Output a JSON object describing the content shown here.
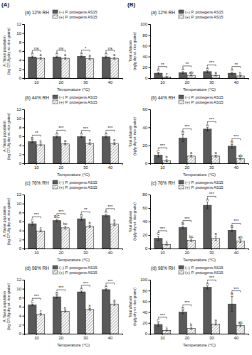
{
  "panel_headings": [
    "(A)",
    "(B)"
  ],
  "chart_data": [
    {
      "type": "bar",
      "title": "(a) 12% RH",
      "xlabel": "Temperature (°C)",
      "ylabel": [
        "A. flavus population",
        "(log CFU/g dry wt. rice grains)"
      ],
      "categories": [
        "10",
        "20",
        "30",
        "40"
      ],
      "ylim": [
        0,
        12
      ],
      "yticks": [
        0,
        2,
        4,
        6,
        8,
        10,
        12
      ],
      "legend": "upper left",
      "series": [
        {
          "name": "(−) P. protegens AS15",
          "color": "#595959",
          "values": [
            4.7,
            4.7,
            4.8,
            4.7
          ],
          "errors": [
            0.2,
            0.2,
            0.15,
            0.2
          ],
          "letters": [
            "A",
            "A",
            "A",
            "A"
          ]
        },
        {
          "name": "(+) P. protegens AS15",
          "color": "#ffffff",
          "values": [
            4.4,
            4.4,
            4.3,
            4.4
          ],
          "errors": [
            0.25,
            0.2,
            0.2,
            0.2
          ],
          "letters": [
            "a",
            "a",
            "a",
            "a"
          ]
        }
      ],
      "significance": [
        "ns",
        "ns",
        "*",
        "ns"
      ]
    },
    {
      "type": "bar",
      "title": "(b) 44% RH",
      "xlabel": "Temperature (°C)",
      "ylabel": [
        "A. flavus population",
        "(log CFU/g dry wt. rice grains)"
      ],
      "categories": [
        "10",
        "20",
        "30",
        "40"
      ],
      "ylim": [
        0,
        12
      ],
      "yticks": [
        0,
        2,
        4,
        6,
        8,
        10,
        12
      ],
      "legend": "upper left",
      "series": [
        {
          "name": "(−) P. protegens AS15",
          "color": "#595959",
          "values": [
            4.8,
            5.9,
            5.9,
            5.9
          ],
          "errors": [
            0.2,
            0.2,
            0.15,
            0.2
          ],
          "letters": [
            "B",
            "A",
            "A",
            "A"
          ]
        },
        {
          "name": "(+) P. protegens AS15",
          "color": "#ffffff",
          "values": [
            4.1,
            4.3,
            4.4,
            4.4
          ],
          "errors": [
            0.2,
            0.2,
            0.2,
            0.2
          ],
          "letters": [
            "b",
            "a",
            "a",
            "a"
          ]
        }
      ],
      "significance": [
        "**",
        "***",
        "***",
        "***"
      ]
    },
    {
      "type": "bar",
      "title": "(c) 76% RH",
      "xlabel": "Temperature (°C)",
      "ylabel": [
        "A. flavus population",
        "(log CFU/g dry wt. rice grains)"
      ],
      "categories": [
        "10",
        "20",
        "30",
        "40"
      ],
      "ylim": [
        0,
        12
      ],
      "yticks": [
        0,
        2,
        4,
        6,
        8,
        10,
        12
      ],
      "legend": "upper left",
      "series": [
        {
          "name": "(−) P. protegens AS15",
          "color": "#595959",
          "values": [
            5.5,
            6.2,
            6.6,
            7.3
          ],
          "errors": [
            0.3,
            0.3,
            0.3,
            0.3
          ],
          "letters": [
            "C",
            "BC",
            "B",
            "A"
          ]
        },
        {
          "name": "(+) P. protegens AS15",
          "color": "#ffffff",
          "values": [
            3.9,
            4.6,
            4.9,
            5.4
          ],
          "errors": [
            0.2,
            0.3,
            0.2,
            0.3
          ],
          "letters": [
            "c",
            "bc",
            "b",
            "a"
          ]
        }
      ],
      "significance": [
        "***",
        "***",
        "**",
        "***"
      ]
    },
    {
      "type": "bar",
      "title": "(d) 98% RH",
      "xlabel": "Temperature (°C)",
      "ylabel": [
        "A. flavus population",
        "(log CFU/g dry wt. rice grains)"
      ],
      "categories": [
        "10",
        "20",
        "30",
        "40"
      ],
      "ylim": [
        0,
        12
      ],
      "yticks": [
        0,
        2,
        4,
        6,
        8,
        10,
        12
      ],
      "legend": "upper left",
      "series": [
        {
          "name": "(−) P. protegens AS15",
          "color": "#595959",
          "values": [
            6.4,
            8.2,
            9.3,
            9.8
          ],
          "errors": [
            0.2,
            0.3,
            0.2,
            0.2
          ],
          "letters": [
            "C",
            "B",
            "A",
            "A"
          ]
        },
        {
          "name": "(+) P. protegens AS15",
          "color": "#ffffff",
          "values": [
            4.3,
            5.0,
            5.4,
            6.6
          ],
          "errors": [
            0.2,
            0.2,
            0.2,
            0.3
          ],
          "letters": [
            "c",
            "b",
            "b",
            "a"
          ]
        }
      ],
      "significance": [
        "***",
        "***",
        "***",
        "***"
      ]
    },
    {
      "type": "bar",
      "title": "(a) 12% RH",
      "xlabel": "Temperature (°C)",
      "ylabel": [
        "Total aflatoxin",
        "(ng/g dry wt. rice grains)"
      ],
      "categories": [
        "10",
        "20",
        "30",
        "40"
      ],
      "ylim": [
        0,
        100
      ],
      "yticks": [
        0,
        20,
        40,
        60,
        80,
        100
      ],
      "legend": "upper left",
      "series": [
        {
          "name": "(−) P. protegens AS15",
          "color": "#595959",
          "values": [
            9,
            10,
            12,
            9
          ],
          "errors": [
            2,
            2,
            2,
            2
          ],
          "letters": [
            "A",
            "A",
            "A",
            "A"
          ]
        },
        {
          "name": "(+) P. protegens AS15",
          "color": "#ffffff",
          "values": [
            2,
            5,
            5,
            4
          ],
          "errors": [
            1,
            1,
            1,
            1
          ],
          "letters": [
            "c",
            "ab",
            "a",
            "b"
          ]
        }
      ],
      "significance": [
        "**",
        "**",
        "***",
        "**"
      ]
    },
    {
      "type": "bar",
      "title": "(b) 44% RH",
      "xlabel": "Temperature (°C)",
      "ylabel": [
        "Total aflatoxin",
        "(ng/g dry wt. rice grains)"
      ],
      "categories": [
        "10",
        "20",
        "30",
        "40"
      ],
      "ylim": [
        0,
        60
      ],
      "yticks": [
        0,
        20,
        40,
        60
      ],
      "legend": "upper left",
      "series": [
        {
          "name": "(−) P. protegens AS15",
          "color": "#595959",
          "values": [
            9,
            28,
            38,
            19
          ],
          "errors": [
            2,
            4,
            2,
            2
          ],
          "letters": [
            "C",
            "B",
            "A",
            "B"
          ]
        },
        {
          "name": "(+) P. protegens AS15",
          "color": "#ffffff",
          "values": [
            3,
            8,
            8,
            5
          ],
          "errors": [
            1,
            1,
            1,
            1
          ],
          "letters": [
            "b",
            "a",
            "a",
            "ab"
          ]
        }
      ],
      "significance": [
        "***",
        "***",
        "***",
        "***"
      ]
    },
    {
      "type": "bar",
      "title": "(c) 76% RH",
      "xlabel": "Temperature (°C)",
      "ylabel": [
        "Total aflatoxin",
        "(ng/g dry wt. rice grains)"
      ],
      "categories": [
        "10",
        "20",
        "30",
        "40"
      ],
      "ylim": [
        0,
        80
      ],
      "yticks": [
        0,
        20,
        40,
        60,
        80
      ],
      "legend": "upper left",
      "series": [
        {
          "name": "(−) P. protegens AS15",
          "color": "#595959",
          "values": [
            15,
            31,
            64,
            27
          ],
          "errors": [
            3,
            2,
            5,
            2
          ],
          "letters": [
            "C",
            "B",
            "A",
            "B"
          ]
        },
        {
          "name": "(+) P. protegens AS15",
          "color": "#ffffff",
          "values": [
            6,
            12,
            15,
            11
          ],
          "errors": [
            1,
            2,
            3,
            2
          ],
          "letters": [
            "c",
            "bc",
            "a",
            "ab"
          ]
        }
      ],
      "significance": [
        "***",
        "***",
        "***",
        "***"
      ]
    },
    {
      "type": "bar",
      "title": "(d) 98% RH",
      "xlabel": "Temperature (°C)",
      "ylabel": [
        "Total aflatoxin",
        "(ng/g dry wt. rice grains)"
      ],
      "categories": [
        "10",
        "20",
        "30",
        "40"
      ],
      "ylim": [
        0,
        100
      ],
      "yticks": [
        0,
        20,
        40,
        60,
        80,
        100
      ],
      "legend": "upper left",
      "series": [
        {
          "name": "(−) P. protegens AS15",
          "color": "#595959",
          "values": [
            17,
            40,
            86,
            55
          ],
          "errors": [
            3,
            3,
            3,
            14
          ],
          "letters": [
            "C",
            "B",
            "A",
            "B"
          ]
        },
        {
          "name": "(+) P. protegens AS15",
          "color": "#ffffff",
          "values": [
            6,
            10,
            18,
            15
          ],
          "errors": [
            1,
            2,
            2,
            2
          ],
          "letters": [
            "c",
            "b",
            "a",
            "ab"
          ]
        }
      ],
      "significance": [
        "***",
        "***",
        "***",
        "***"
      ]
    }
  ]
}
